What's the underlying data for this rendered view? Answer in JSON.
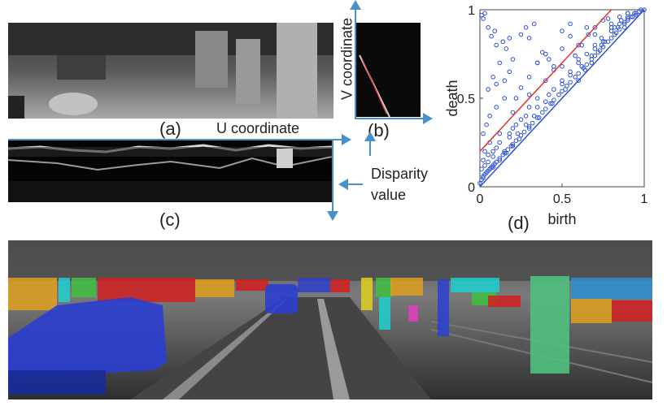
{
  "figure": {
    "labels": {
      "a": "(a)",
      "b": "(b)",
      "c": "(c)",
      "d": "(d)"
    },
    "u_axis_label": "U coordinate",
    "v_axis_label": "V coordinate",
    "disparity_label_line1": "Disparity",
    "disparity_label_line2": "value",
    "colors": {
      "arrow": "#4a90c8",
      "points": "#2a4fd6",
      "fit_line": "#e53935"
    }
  },
  "chart_data": {
    "type": "scatter",
    "title": "",
    "xlabel": "birth",
    "ylabel": "death",
    "xlim": [
      0,
      1
    ],
    "ylim": [
      0,
      1
    ],
    "x_ticks": [
      0,
      0.5,
      1
    ],
    "y_ticks": [
      0,
      0.5,
      1
    ],
    "x_tick_labels": [
      "0",
      "0.5",
      "1"
    ],
    "y_tick_labels": [
      "0",
      "0.5",
      "1"
    ],
    "grid": false,
    "series": [
      {
        "type": "scatter",
        "x": [
          0.0,
          0.01,
          0.02,
          0.03,
          0.04,
          0.05,
          0.06,
          0.07,
          0.08,
          0.09,
          0.1,
          0.12,
          0.14,
          0.15,
          0.17,
          0.19,
          0.2,
          0.22,
          0.25,
          0.27,
          0.3,
          0.32,
          0.35,
          0.38,
          0.4,
          0.43,
          0.45,
          0.48,
          0.5,
          0.53,
          0.55,
          0.58,
          0.6,
          0.63,
          0.65,
          0.68,
          0.7,
          0.73,
          0.75,
          0.78,
          0.8,
          0.83,
          0.85,
          0.88,
          0.9,
          0.93,
          0.95,
          0.97,
          0.98,
          1.0,
          0.02,
          0.03,
          0.05,
          0.06,
          0.08,
          0.1,
          0.12,
          0.15,
          0.18,
          0.2,
          0.23,
          0.25,
          0.28,
          0.3,
          0.33,
          0.35,
          0.4,
          0.45,
          0.5,
          0.55,
          0.6,
          0.65,
          0.7,
          0.75,
          0.8,
          0.85,
          0.9,
          0.95,
          0.02,
          0.04,
          0.06,
          0.1,
          0.15,
          0.2,
          0.3,
          0.4,
          0.5,
          0.6,
          0.7,
          0.8,
          0.9,
          0.01,
          0.03,
          0.05,
          0.08,
          0.12,
          0.18,
          0.22,
          0.28,
          0.35,
          0.42,
          0.5,
          0.55,
          0.62,
          0.68,
          0.74,
          0.82,
          0.88,
          0.94,
          0.05,
          0.08,
          0.1,
          0.12,
          0.15,
          0.18,
          0.2,
          0.22,
          0.25,
          0.3,
          0.35,
          0.4,
          0.45,
          0.5,
          0.55,
          0.6,
          0.65,
          0.7,
          0.75,
          0.8,
          0.85,
          0.9,
          0.1,
          0.14,
          0.16,
          0.18,
          0.35,
          0.38,
          0.42,
          0.45,
          0.5,
          0.55,
          0.58,
          0.62,
          0.66,
          0.7,
          0.74,
          0.78,
          0.82,
          0.86,
          0.9,
          0.01,
          0.02,
          0.03,
          0.05,
          0.07,
          0.09,
          0.25,
          0.28,
          0.3,
          0.33,
          0.6,
          0.64,
          0.68,
          0.72,
          0.76,
          0.8,
          0.84,
          0.88,
          0.92,
          0.02,
          0.04,
          0.06,
          0.08,
          0.12,
          0.16,
          0.2,
          0.24,
          0.3,
          0.36,
          0.44,
          0.52
        ],
        "y": [
          0.02,
          0.04,
          0.05,
          0.07,
          0.08,
          0.09,
          0.1,
          0.11,
          0.12,
          0.13,
          0.14,
          0.16,
          0.18,
          0.19,
          0.21,
          0.23,
          0.24,
          0.26,
          0.29,
          0.31,
          0.34,
          0.36,
          0.39,
          0.42,
          0.44,
          0.47,
          0.49,
          0.52,
          0.54,
          0.57,
          0.59,
          0.62,
          0.64,
          0.67,
          0.69,
          0.72,
          0.74,
          0.77,
          0.79,
          0.82,
          0.84,
          0.87,
          0.89,
          0.92,
          0.94,
          0.96,
          0.97,
          0.99,
          1.0,
          1.0,
          0.15,
          0.2,
          0.14,
          0.25,
          0.17,
          0.22,
          0.3,
          0.2,
          0.28,
          0.33,
          0.3,
          0.38,
          0.35,
          0.45,
          0.4,
          0.5,
          0.48,
          0.55,
          0.6,
          0.65,
          0.7,
          0.75,
          0.78,
          0.82,
          0.88,
          0.92,
          0.95,
          0.98,
          0.3,
          0.35,
          0.4,
          0.45,
          0.5,
          0.42,
          0.52,
          0.6,
          0.68,
          0.72,
          0.8,
          0.9,
          0.96,
          0.1,
          0.12,
          0.18,
          0.2,
          0.25,
          0.3,
          0.35,
          0.4,
          0.45,
          0.52,
          0.58,
          0.63,
          0.68,
          0.74,
          0.8,
          0.86,
          0.9,
          0.98,
          0.55,
          0.62,
          0.58,
          0.7,
          0.6,
          0.65,
          0.72,
          0.5,
          0.56,
          0.62,
          0.7,
          0.75,
          0.66,
          0.78,
          0.85,
          0.8,
          0.9,
          0.86,
          0.94,
          0.92,
          0.96,
          0.98,
          0.8,
          0.82,
          0.78,
          0.84,
          0.7,
          0.76,
          0.72,
          0.68,
          0.88,
          0.92,
          0.74,
          0.8,
          0.86,
          0.9,
          0.84,
          0.95,
          0.9,
          0.94,
          0.98,
          0.97,
          0.95,
          0.98,
          0.9,
          0.85,
          0.88,
          0.86,
          0.9,
          0.84,
          0.92,
          0.6,
          0.66,
          0.7,
          0.76,
          0.82,
          0.88,
          0.9,
          0.93,
          0.96,
          0.06,
          0.08,
          0.1,
          0.11,
          0.15,
          0.19,
          0.23,
          0.27,
          0.33,
          0.39,
          0.47,
          0.55
        ]
      }
    ],
    "fit_line": {
      "x": [
        0,
        0.8
      ],
      "y": [
        0.2,
        1.0
      ]
    },
    "diagonal": {
      "x": [
        0,
        1
      ],
      "y": [
        0,
        1
      ]
    }
  }
}
